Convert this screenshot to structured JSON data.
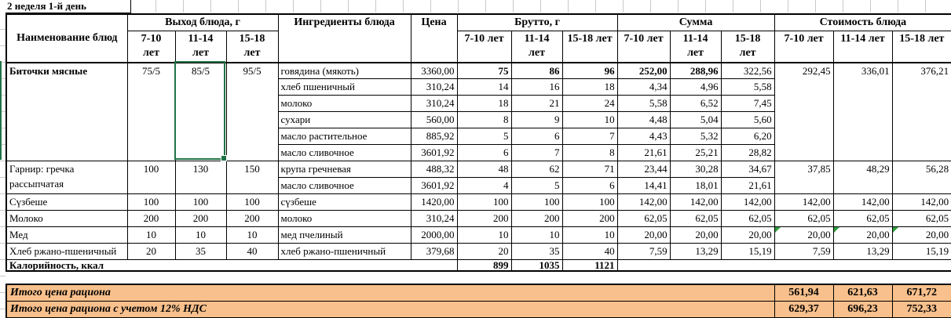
{
  "title": "2 неделя 1-й день",
  "colors": {
    "totals_bg": "#f8c08c",
    "selection_green": "#217346",
    "error_flag_green": "#2f9e3e",
    "grid_tick_gray": "#c9c9c9",
    "border_black": "#000000"
  },
  "header": {
    "name": "Наименование блюд",
    "out": "Выход блюда, г",
    "ingredients": "Ингредиенты блюда",
    "price": "Цена",
    "gross": "Брутто, г",
    "sum": "Сумма",
    "cost": "Стоимость блюда",
    "ages": [
      "7-10 лет",
      "11-14 лет",
      "15-18 лет"
    ]
  },
  "selection": {
    "cell_value": "85/5",
    "column": "11-14 лет",
    "dish": "Биточки мясные"
  },
  "dishes": [
    {
      "name": "Биточки мясные",
      "name_bold": true,
      "out": [
        "75/5",
        "85/5",
        "95/5"
      ],
      "rows": [
        {
          "ingredient": "говядина (мякоть)",
          "price": "3360,00",
          "gross": [
            "75",
            "86",
            "96"
          ],
          "gross_bold": true,
          "sum": [
            "252,00",
            "288,96",
            "322,56"
          ],
          "sum_bold": [
            true,
            true,
            false
          ]
        },
        {
          "ingredient": "хлеб пшеничный",
          "price": "310,24",
          "gross": [
            "14",
            "16",
            "18"
          ],
          "sum": [
            "4,34",
            "4,96",
            "5,58"
          ]
        },
        {
          "ingredient": "молоко",
          "price": "310,24",
          "gross": [
            "18",
            "21",
            "24"
          ],
          "sum": [
            "5,58",
            "6,52",
            "7,45"
          ]
        },
        {
          "ingredient": "сухари",
          "price": "560,00",
          "gross": [
            "8",
            "9",
            "10"
          ],
          "sum": [
            "4,48",
            "5,04",
            "5,60"
          ]
        },
        {
          "ingredient": "масло растительное",
          "price": "885,92",
          "gross": [
            "5",
            "6",
            "7"
          ],
          "sum": [
            "4,43",
            "5,32",
            "6,20"
          ]
        },
        {
          "ingredient": "масло сливочное",
          "price": "3601,92",
          "gross": [
            "6",
            "7",
            "8"
          ],
          "sum": [
            "21,61",
            "25,21",
            "28,82"
          ]
        }
      ],
      "cost": [
        "292,45",
        "336,01",
        "376,21"
      ]
    },
    {
      "name": "Гарнир: гречка рассыпчатая",
      "out": [
        "100",
        "130",
        "150"
      ],
      "rows": [
        {
          "ingredient": "крупа гречневая",
          "price": "488,32",
          "gross": [
            "48",
            "62",
            "71"
          ],
          "sum": [
            "23,44",
            "30,28",
            "34,67"
          ]
        },
        {
          "ingredient": "масло сливочное",
          "price": "3601,92",
          "gross": [
            "4",
            "5",
            "6"
          ],
          "sum": [
            "14,41",
            "18,01",
            "21,61"
          ]
        }
      ],
      "cost": [
        "37,85",
        "48,29",
        "56,28"
      ]
    },
    {
      "name": "Сүзбеше",
      "out": [
        "100",
        "100",
        "100"
      ],
      "rows": [
        {
          "ingredient": "сүзбеше",
          "price": "1420,00",
          "gross": [
            "100",
            "100",
            "100"
          ],
          "sum": [
            "142,00",
            "142,00",
            "142,00"
          ]
        }
      ],
      "cost": [
        "142,00",
        "142,00",
        "142,00"
      ]
    },
    {
      "name": "Молоко",
      "out": [
        "200",
        "200",
        "200"
      ],
      "rows": [
        {
          "ingredient": "молоко",
          "price": "310,24",
          "gross": [
            "200",
            "200",
            "200"
          ],
          "sum": [
            "62,05",
            "62,05",
            "62,05"
          ]
        }
      ],
      "cost": [
        "62,05",
        "62,05",
        "62,05"
      ]
    },
    {
      "name": "Мед",
      "out": [
        "10",
        "10",
        "10"
      ],
      "rows": [
        {
          "ingredient": "мед пчелиный",
          "price": "2000,00",
          "gross": [
            "10",
            "10",
            "10"
          ],
          "sum": [
            "20,00",
            "20,00",
            "20,00"
          ]
        }
      ],
      "cost": [
        "20,00",
        "20,00",
        "20,00"
      ],
      "cost_flags": true
    },
    {
      "name": "Хлеб ржано-пшеничный",
      "out": [
        "20",
        "35",
        "40"
      ],
      "rows": [
        {
          "ingredient": "хлеб ржано-пшеничный",
          "price": "379,68",
          "gross": [
            "20",
            "35",
            "40"
          ],
          "sum": [
            "7,59",
            "13,29",
            "15,19"
          ]
        }
      ],
      "cost": [
        "7,59",
        "13,29",
        "15,19"
      ]
    }
  ],
  "calories": {
    "label": "Калорийность, ккал",
    "values": [
      "899",
      "1035",
      "1121"
    ]
  },
  "totals": [
    {
      "label": "Итого цена рациона",
      "values": [
        "561,94",
        "621,63",
        "671,72"
      ]
    },
    {
      "label": "Итого цена рациона с учетом 12% НДС",
      "values": [
        "629,37",
        "696,23",
        "752,33"
      ]
    }
  ]
}
